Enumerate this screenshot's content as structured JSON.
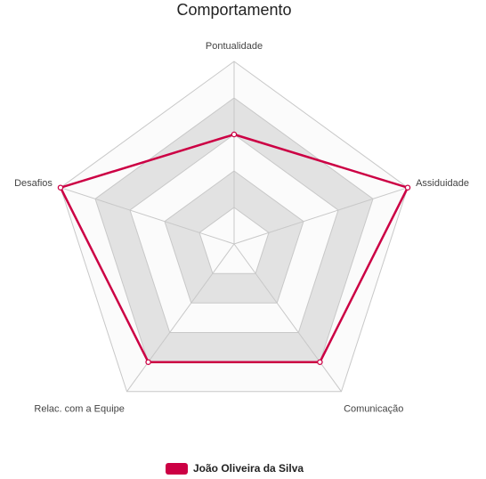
{
  "chart_data": {
    "type": "radar",
    "title": "Comportamento",
    "categories": [
      "Pontualidade",
      "Assiduidade",
      "Comunicação",
      "Relac. com a Equipe",
      "Desafios"
    ],
    "range": [
      0,
      5
    ],
    "levels": 5,
    "grid": true,
    "legend_position": "bottom",
    "series": [
      {
        "name": "João Oliveira da Silva",
        "values": [
          3,
          5,
          4,
          4,
          5
        ],
        "color": "#cc0044"
      }
    ]
  },
  "colors": {
    "band_dark": "#e2e2e2",
    "band_light": "#fbfbfb",
    "grid_line": "#c8c8c8",
    "series": "#cc0044"
  }
}
